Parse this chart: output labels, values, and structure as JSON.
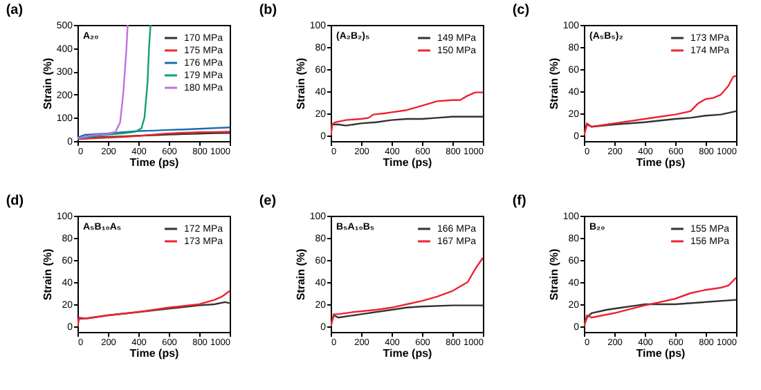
{
  "chart_data": [
    {
      "type": "line",
      "title": "(a)",
      "annotations": [
        "A₂₀"
      ],
      "xlabel": "Time (ps)",
      "ylabel": "Strain (%)",
      "xlim": [
        0,
        1000
      ],
      "xticks": [
        0,
        200,
        400,
        600,
        800,
        1000
      ],
      "ylim": [
        0,
        500
      ],
      "yticks": [
        0,
        100,
        200,
        300,
        400,
        500
      ],
      "legend": "top right",
      "series": [
        {
          "name": "170 MPa",
          "color": "#333333",
          "x": [
            0,
            100,
            200,
            300,
            400,
            500,
            600,
            700,
            800,
            900,
            1000
          ],
          "values": [
            10,
            15,
            18,
            20,
            23,
            25,
            28,
            30,
            32,
            34,
            35
          ]
        },
        {
          "name": "175 MPa",
          "color": "#ee2233",
          "x": [
            0,
            100,
            200,
            300,
            400,
            500,
            600,
            700,
            800,
            900,
            1000
          ],
          "values": [
            8,
            12,
            15,
            18,
            22,
            28,
            33,
            36,
            38,
            39,
            40
          ]
        },
        {
          "name": "176 MPa",
          "color": "#1670b0",
          "x": [
            0,
            50,
            200,
            300,
            400,
            500,
            600,
            700,
            800,
            900,
            1000
          ],
          "values": [
            15,
            27,
            33,
            38,
            43,
            45,
            48,
            50,
            53,
            56,
            59
          ]
        },
        {
          "name": "179 MPa",
          "color": "#10a070",
          "x": [
            0,
            100,
            200,
            300,
            380,
            420,
            440,
            460,
            470,
            480
          ],
          "values": [
            10,
            20,
            28,
            33,
            40,
            55,
            100,
            250,
            400,
            500
          ]
        },
        {
          "name": "180 MPa",
          "color": "#c070e0",
          "x": [
            0,
            100,
            200,
            250,
            280,
            300,
            320,
            330
          ],
          "values": [
            12,
            25,
            32,
            40,
            80,
            200,
            380,
            500
          ]
        }
      ]
    },
    {
      "type": "line",
      "title": "(b)",
      "annotations": [
        "(A₂B₂)₅"
      ],
      "xlabel": "Time (ps)",
      "ylabel": "Strain (%)",
      "xlim": [
        0,
        1000
      ],
      "xticks": [
        0,
        200,
        400,
        600,
        800,
        1000
      ],
      "ylim": [
        -5,
        100
      ],
      "yticks": [
        0,
        20,
        40,
        60,
        80,
        100
      ],
      "legend": "top right",
      "series": [
        {
          "name": "149 MPa",
          "color": "#333333",
          "x": [
            0,
            10,
            50,
            100,
            200,
            300,
            400,
            500,
            600,
            700,
            800,
            900,
            1000
          ],
          "values": [
            0,
            10,
            10,
            9,
            11,
            12,
            14,
            15,
            15,
            16,
            17,
            17,
            17
          ]
        },
        {
          "name": "150 MPa",
          "color": "#ee2233",
          "x": [
            0,
            10,
            30,
            100,
            200,
            250,
            280,
            350,
            400,
            500,
            600,
            650,
            700,
            800,
            850,
            900,
            950,
            1000
          ],
          "values": [
            0,
            10,
            12,
            14,
            15,
            16,
            19,
            20,
            21,
            23,
            27,
            29,
            31,
            32,
            32,
            36,
            39,
            39
          ]
        }
      ]
    },
    {
      "type": "line",
      "title": "(c)",
      "annotations": [
        "(A₅B₅)₂"
      ],
      "xlabel": "Time (ps)",
      "ylabel": "Strain (%)",
      "xlim": [
        0,
        1000
      ],
      "xticks": [
        0,
        200,
        400,
        600,
        800,
        1000
      ],
      "ylim": [
        -5,
        100
      ],
      "yticks": [
        0,
        20,
        40,
        60,
        80,
        100
      ],
      "legend": "top right",
      "series": [
        {
          "name": "173 MPa",
          "color": "#333333",
          "x": [
            0,
            20,
            50,
            200,
            400,
            600,
            700,
            800,
            900,
            1000
          ],
          "values": [
            0,
            10,
            8,
            10,
            12,
            15,
            16,
            18,
            19,
            22
          ]
        },
        {
          "name": "174 MPa",
          "color": "#ee2233",
          "x": [
            0,
            20,
            50,
            200,
            400,
            500,
            600,
            700,
            750,
            800,
            850,
            900,
            950,
            980,
            1000
          ],
          "values": [
            0,
            11,
            8,
            11,
            15,
            17,
            19,
            22,
            29,
            33,
            34,
            37,
            45,
            53,
            54
          ]
        }
      ]
    },
    {
      "type": "line",
      "title": "(d)",
      "annotations": [
        "A₅B₁₀A₅"
      ],
      "xlabel": "Time (ps)",
      "ylabel": "Strain (%)",
      "xlim": [
        0,
        1000
      ],
      "xticks": [
        0,
        200,
        400,
        600,
        800,
        1000
      ],
      "ylim": [
        -5,
        100
      ],
      "yticks": [
        0,
        20,
        40,
        60,
        80,
        100
      ],
      "legend": "top right",
      "series": [
        {
          "name": "172 MPa",
          "color": "#333333",
          "x": [
            0,
            10,
            50,
            200,
            400,
            600,
            800,
            900,
            970,
            1000
          ],
          "values": [
            0,
            7,
            7,
            10,
            13,
            16,
            19,
            20,
            22,
            21
          ]
        },
        {
          "name": "173 MPa",
          "color": "#ee2233",
          "x": [
            0,
            10,
            50,
            200,
            400,
            600,
            800,
            900,
            950,
            1000
          ],
          "values": [
            0,
            8,
            7,
            10,
            13,
            17,
            20,
            24,
            27,
            32
          ]
        }
      ]
    },
    {
      "type": "line",
      "title": "(e)",
      "annotations": [
        "B₅A₁₀B₅"
      ],
      "xlabel": "Time (ps)",
      "ylabel": "Strain (%)",
      "xlim": [
        0,
        1000
      ],
      "xticks": [
        0,
        200,
        400,
        600,
        800,
        1000
      ],
      "ylim": [
        -5,
        100
      ],
      "yticks": [
        0,
        20,
        40,
        60,
        80,
        100
      ],
      "legend": "top right",
      "series": [
        {
          "name": "166 MPa",
          "color": "#333333",
          "x": [
            0,
            20,
            50,
            200,
            400,
            500,
            600,
            800,
            1000
          ],
          "values": [
            0,
            10,
            8,
            11,
            15,
            17,
            18,
            19,
            19
          ]
        },
        {
          "name": "167 MPa",
          "color": "#ee2233",
          "x": [
            0,
            20,
            50,
            150,
            300,
            400,
            500,
            600,
            700,
            800,
            900,
            950,
            1000
          ],
          "values": [
            0,
            11,
            11,
            13,
            15,
            17,
            20,
            23,
            27,
            32,
            40,
            52,
            62
          ]
        }
      ]
    },
    {
      "type": "line",
      "title": "(f)",
      "annotations": [
        "B₂₀"
      ],
      "xlabel": "Time (ps)",
      "ylabel": "Strain (%)",
      "xlim": [
        0,
        1000
      ],
      "xticks": [
        0,
        200,
        400,
        600,
        800,
        1000
      ],
      "ylim": [
        -5,
        100
      ],
      "yticks": [
        0,
        20,
        40,
        60,
        80,
        100
      ],
      "legend": "top right",
      "series": [
        {
          "name": "155 MPa",
          "color": "#333333",
          "x": [
            0,
            20,
            50,
            150,
            250,
            350,
            400,
            600,
            800,
            1000
          ],
          "values": [
            0,
            8,
            12,
            15,
            17,
            19,
            20,
            20,
            22,
            24
          ]
        },
        {
          "name": "156 MPa",
          "color": "#ee2233",
          "x": [
            0,
            20,
            50,
            200,
            400,
            500,
            600,
            700,
            800,
            900,
            950,
            1000
          ],
          "values": [
            0,
            10,
            8,
            12,
            19,
            22,
            25,
            30,
            33,
            35,
            37,
            44
          ]
        }
      ]
    }
  ]
}
